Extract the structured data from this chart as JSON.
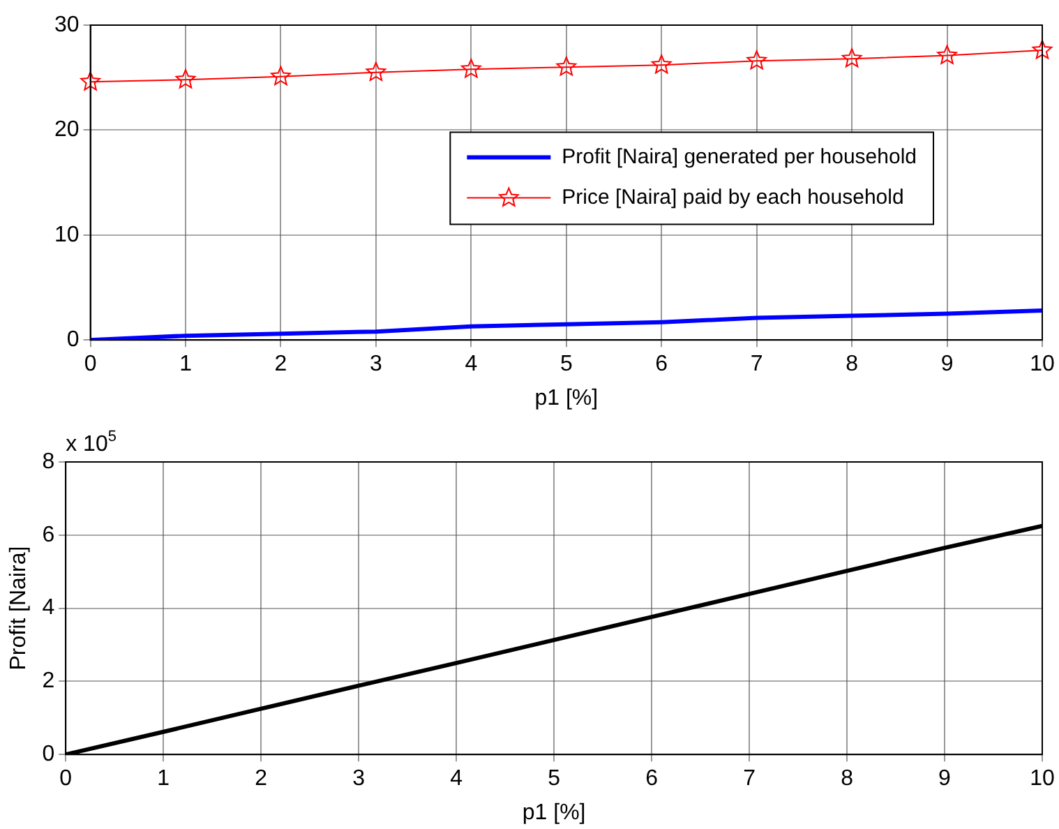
{
  "chart_data": [
    {
      "type": "line",
      "x": [
        0,
        1,
        2,
        3,
        4,
        5,
        6,
        7,
        8,
        9,
        10
      ],
      "xlabel": "p1 [%]",
      "xlim": [
        0,
        10
      ],
      "xticks": [
        0,
        1,
        2,
        3,
        4,
        5,
        6,
        7,
        8,
        9,
        10
      ],
      "ylim": [
        0,
        30
      ],
      "yticks": [
        0,
        10,
        20,
        30
      ],
      "grid": true,
      "legend": "center right",
      "series": [
        {
          "name": "Profit [Naira] generated per household",
          "color": "#0000ff",
          "marker": "none",
          "values": [
            0,
            0.4,
            0.6,
            0.8,
            1.3,
            1.5,
            1.7,
            2.1,
            2.3,
            2.5,
            2.8
          ]
        },
        {
          "name": "Price [Naira] paid by each household",
          "color": "#ff0000",
          "marker": "star",
          "values": [
            24.6,
            24.8,
            25.1,
            25.5,
            25.8,
            26.0,
            26.2,
            26.6,
            26.8,
            27.1,
            27.6
          ]
        }
      ]
    },
    {
      "type": "line",
      "x": [
        0,
        1,
        2,
        3,
        4,
        5,
        6,
        7,
        8,
        9,
        10
      ],
      "xlabel": "p1 [%]",
      "ylabel": "Profit [Naira]",
      "xlim": [
        0,
        10
      ],
      "xticks": [
        0,
        1,
        2,
        3,
        4,
        5,
        6,
        7,
        8,
        9,
        10
      ],
      "ylim": [
        0,
        8
      ],
      "yticks": [
        0,
        2,
        4,
        6,
        8
      ],
      "grid": true,
      "annotations": [
        "x 10$^{5}$"
      ],
      "series": [
        {
          "color": "#000000",
          "marker": "none",
          "values": [
            0,
            0.62,
            1.25,
            1.88,
            2.5,
            3.13,
            3.76,
            4.39,
            5.02,
            5.65,
            6.25
          ]
        }
      ]
    }
  ]
}
